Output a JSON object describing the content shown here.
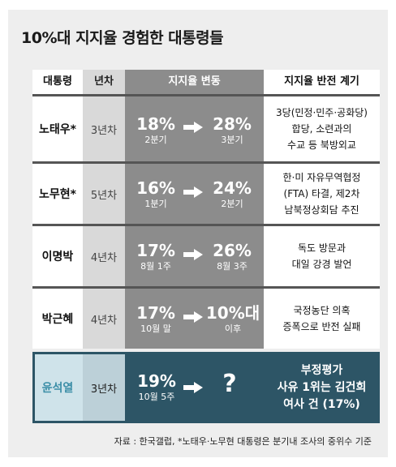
{
  "title": "10%대 지지율 경험한 대통령들",
  "headers": {
    "name": "대통령",
    "year": "년차",
    "change": "지지율 변동",
    "reason": "지지율 반전 계기"
  },
  "rows": [
    {
      "name": "노태우*",
      "year": "3년차",
      "from_value": "18%",
      "from_period": "2분기",
      "to_value": "28%",
      "to_period": "3분기",
      "reason": [
        "3당(민정·민주·공화당)",
        "합당, 소련과의",
        "수교 등 북방외교"
      ]
    },
    {
      "name": "노무현*",
      "year": "5년차",
      "from_value": "16%",
      "from_period": "1분기",
      "to_value": "24%",
      "to_period": "2분기",
      "reason": [
        "한·미 자유무역협정",
        "(FTA) 타결, 제2차",
        "남북정상회담 추진"
      ]
    },
    {
      "name": "이명박",
      "year": "4년차",
      "from_value": "17%",
      "from_period": "8월 1주",
      "to_value": "26%",
      "to_period": "8월 3주",
      "reason": [
        "독도 방문과",
        "대일 강경 발언"
      ]
    },
    {
      "name": "박근혜",
      "year": "4년차",
      "from_value": "17%",
      "from_period": "10월 말",
      "to_value": "10%대",
      "to_period": "이후",
      "reason": [
        "국정농단 의혹",
        "증폭으로 반전 실패"
      ]
    },
    {
      "name": "윤석열",
      "year": "3년차",
      "from_value": "19%",
      "from_period": "10월 5주",
      "to_value": "?",
      "to_period": "",
      "reason": [
        "부정평가",
        "사유 1위는 김건희",
        "여사 건 (17%)"
      ]
    }
  ],
  "footnote": "자료 : 한국갤럽, *노태우·노무현 대통령은 분기내 조사의 중위수 기준",
  "colors": {
    "header_name": "#ffffff",
    "change_gray": "#8c8c8c",
    "highlight": "#2d5566",
    "highlight_name": "#3c8ea7"
  }
}
